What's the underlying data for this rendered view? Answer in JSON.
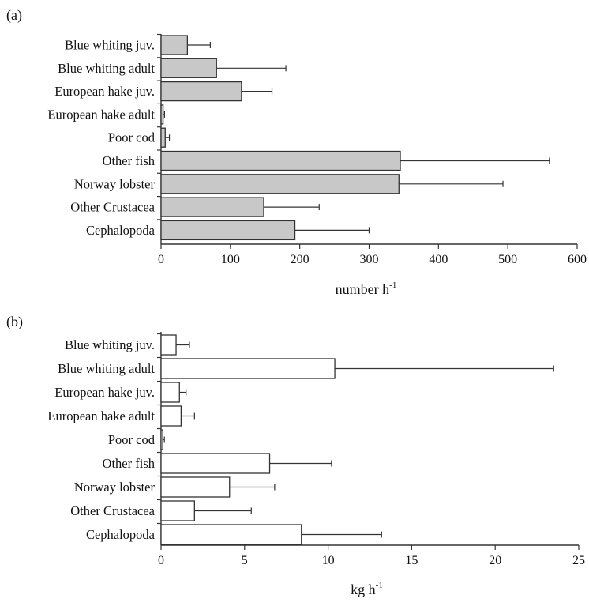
{
  "chart_data": [
    {
      "type": "bar",
      "orientation": "horizontal",
      "panel_label": "(a)",
      "categories": [
        "Blue whiting juv.",
        "Blue whiting adult",
        "European hake juv.",
        "European hake adult",
        "Poor cod",
        "Other fish",
        "Norway lobster",
        "Other Crustacea",
        "Cephalopoda"
      ],
      "values": [
        38,
        80,
        116,
        3,
        6,
        345,
        343,
        148,
        193
      ],
      "error_upper": [
        71,
        180,
        160,
        5,
        12,
        560,
        493,
        228,
        300
      ],
      "xlabel_main": "number h",
      "xlabel_sup": "-1",
      "xlim": [
        0,
        600
      ],
      "xticks": [
        0,
        100,
        200,
        300,
        400,
        500,
        600
      ],
      "bar_color": "#c8c8c8",
      "grid": false
    },
    {
      "type": "bar",
      "orientation": "horizontal",
      "panel_label": "(b)",
      "categories": [
        "Blue whiting juv.",
        "Blue whiting adult",
        "European hake juv.",
        "European hake adult",
        "Poor cod",
        "Other fish",
        "Norway lobster",
        "Other Crustacea",
        "Cephalopoda"
      ],
      "values": [
        0.9,
        10.4,
        1.1,
        1.2,
        0.1,
        6.5,
        4.1,
        2.0,
        8.4
      ],
      "error_upper": [
        1.7,
        23.5,
        1.5,
        2.0,
        0.2,
        10.2,
        6.8,
        5.4,
        13.2
      ],
      "xlabel_main": "kg h",
      "xlabel_sup": "-1",
      "xlim": [
        0,
        25
      ],
      "xticks": [
        0,
        5,
        10,
        15,
        20,
        25
      ],
      "bar_color": "#ffffff",
      "grid": false
    }
  ]
}
